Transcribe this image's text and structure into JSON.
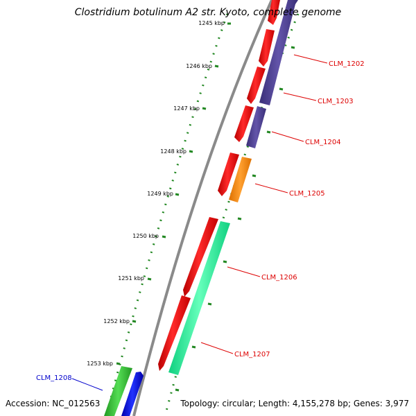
{
  "title": "Clostridium botulinum A2 str. Kyoto, complete genome",
  "footer": {
    "accession": "Accession: NC_012563",
    "summary": "Topology: circular; Length: 4,155,278 bp; Genes: 3,977"
  },
  "ticks": [
    "1245 kbp",
    "1246 kbp",
    "1247 kbp",
    "1248 kbp",
    "1249 kbp",
    "1250 kbp",
    "1251 kbp",
    "1252 kbp",
    "1253 kbp"
  ],
  "genes": [
    {
      "name": "CLM_1202",
      "color": "#dd0000"
    },
    {
      "name": "CLM_1203",
      "color": "#dd0000"
    },
    {
      "name": "CLM_1204",
      "color": "#dd0000"
    },
    {
      "name": "CLM_1205",
      "color": "#dd0000"
    },
    {
      "name": "CLM_1206",
      "color": "#dd0000"
    },
    {
      "name": "CLM_1207",
      "color": "#dd0000"
    },
    {
      "name": "CLM_1208",
      "color": "#0000cc"
    }
  ],
  "colors": {
    "cds": "#ff0000",
    "cog_purple": "#4b3d8f",
    "cog_orange": "#ff8c00",
    "cog_teal": "#22ee99",
    "cog_green": "#33bb33",
    "cog_blue": "#0000ee",
    "backbone": "#8a8a8a",
    "tick": "#228822"
  }
}
